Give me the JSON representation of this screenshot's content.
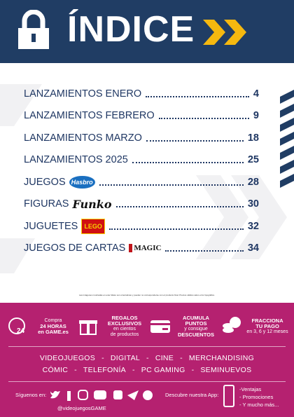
{
  "header": {
    "title": "ÍNDICE"
  },
  "index": [
    {
      "label": "LANZAMIENTOS ENERO",
      "page": 4
    },
    {
      "label": "LANZAMIENTOS FEBRERO",
      "page": 9
    },
    {
      "label": "LANZAMIENTOS MARZO",
      "page": 18
    },
    {
      "label": "LANZAMIENTOS 2025",
      "page": 25
    },
    {
      "label": "JUEGOS",
      "logo": "Hasbro",
      "page": 28
    },
    {
      "label": "FIGURAS",
      "logo": "Funko",
      "page": 30
    },
    {
      "label": "JUGUETES",
      "logo": "LEGO",
      "page": 32
    },
    {
      "label": "JUEGOS DE CARTAS",
      "logo": "MAGIC",
      "page": 34
    }
  ],
  "disclaimer": "Las imágenes mostradas en este folleto son orientativas y pueden no corresponderse con el producto final. Precios válidos salvo error tipográfico.",
  "features": [
    {
      "icon_text": "24",
      "lines": [
        {
          "text": "Compra"
        },
        {
          "text": "24 HORAS",
          "bold": true
        },
        {
          "text": "en GAME.es",
          "bold": true
        }
      ]
    },
    {
      "lines": [
        {
          "text": "REGALOS",
          "bold": true
        },
        {
          "text": "EXCLUSIVOS",
          "bold": true
        },
        {
          "text": "en cientos"
        },
        {
          "text": "de productos"
        }
      ]
    },
    {
      "lines": [
        {
          "text": "ACUMULA",
          "bold": true
        },
        {
          "text": "PUNTOS",
          "bold": true
        },
        {
          "text": "y consigue"
        },
        {
          "text": "DESCUENTOS",
          "bold": true
        }
      ]
    },
    {
      "lines": [
        {
          "text": "FRACCIONA",
          "bold": true
        },
        {
          "text": "TU PAGO",
          "bold": true
        },
        {
          "text": "en 3, 6 y 12 meses"
        }
      ]
    }
  ],
  "categories": [
    [
      "VIDEOJUEGOS",
      "DIGITAL",
      "CINE",
      "MERCHANDISING"
    ],
    [
      "CÓMIC",
      "TELEFONÍA",
      "PC GAMING",
      "SEMINUEVOS"
    ]
  ],
  "social": {
    "label": "Síguenos en:",
    "handle": "@videojuegosGAME"
  },
  "app": {
    "label": "Descubre nuestra App:",
    "items": [
      "-Ventajas",
      "- Promociones",
      "- Y mucho más..."
    ]
  }
}
